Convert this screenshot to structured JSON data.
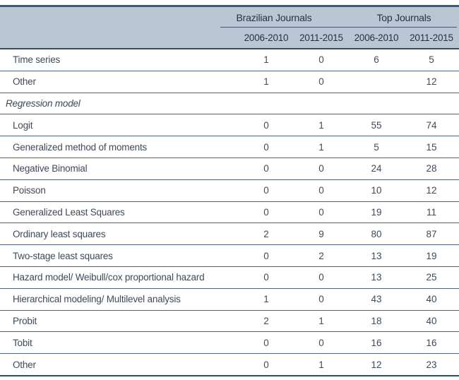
{
  "table": {
    "col_groups": [
      {
        "label": "Brazilian Journals"
      },
      {
        "label": "Top Journals"
      }
    ],
    "sub_headers": [
      "2006-2010",
      "2011-2015",
      "2006-2010",
      "2011-2015"
    ],
    "rows": [
      {
        "type": "data",
        "label": "Time series",
        "values": [
          "1",
          "0",
          "6",
          "5"
        ]
      },
      {
        "type": "data",
        "label": "Other",
        "values": [
          "1",
          "0",
          "",
          "12"
        ]
      },
      {
        "type": "section",
        "label": "Regression model",
        "values": null
      },
      {
        "type": "data",
        "label": "Logit",
        "values": [
          "0",
          "1",
          "55",
          "74"
        ]
      },
      {
        "type": "data",
        "label": "Generalized method of moments",
        "values": [
          "0",
          "1",
          "5",
          "15"
        ]
      },
      {
        "type": "data",
        "label": "Negative Binomial",
        "values": [
          "0",
          "0",
          "24",
          "28"
        ]
      },
      {
        "type": "data",
        "label": "Poisson",
        "values": [
          "0",
          "0",
          "10",
          "12"
        ]
      },
      {
        "type": "data",
        "label": "Generalized Least Squares",
        "values": [
          "0",
          "0",
          "19",
          "11"
        ]
      },
      {
        "type": "data",
        "label": "Ordinary least squares",
        "values": [
          "2",
          "9",
          "80",
          "87"
        ]
      },
      {
        "type": "data",
        "label": "Two-stage least squares",
        "values": [
          "0",
          "2",
          "13",
          "19"
        ]
      },
      {
        "type": "data",
        "label": "Hazard model/ Weibull/cox proportional hazard",
        "values": [
          "0",
          "0",
          "13",
          "25"
        ]
      },
      {
        "type": "data",
        "label": "Hierarchical modeling/ Multilevel analysis",
        "values": [
          "1",
          "0",
          "43",
          "40"
        ]
      },
      {
        "type": "data",
        "label": "Probit",
        "values": [
          "2",
          "1",
          "18",
          "40"
        ]
      },
      {
        "type": "data",
        "label": "Tobit",
        "values": [
          "0",
          "0",
          "16",
          "16"
        ]
      },
      {
        "type": "data",
        "label": "Other",
        "values": [
          "0",
          "1",
          "12",
          "23"
        ]
      }
    ],
    "colors": {
      "header_bg": "#bac6d6",
      "top_border": "#3e5a7d",
      "thick_border": "#2f4f60",
      "row_line": "#4d667e",
      "body_text": "#3f4a57",
      "header_text": "#26323c"
    }
  }
}
